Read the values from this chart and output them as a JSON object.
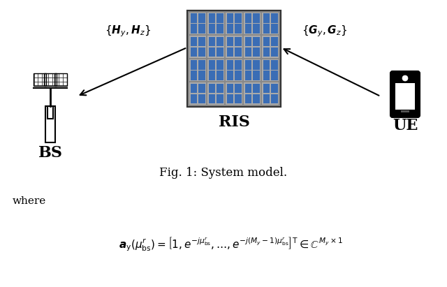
{
  "title": "Fig. 1: System model.",
  "ris_label": "RIS",
  "bs_label": "BS",
  "ue_label": "UE",
  "where_text": "where",
  "equation": "$\\boldsymbol{a}_{\\mathrm{y}}(\\mu_{\\mathrm{bs}}^{r}) = \\left[1, e^{-j\\mu_{\\mathrm{bs}}^{r}}, \\ldots, e^{-j(M_y-1)\\mu_{\\mathrm{bs}}^{r}}\\right]^{\\mathrm{T}} \\in \\mathbb{C}^{M_y \\times 1}$",
  "h_label": "$\\{\\boldsymbol{H}_y, \\boldsymbol{H}_z\\}$",
  "g_label": "$\\{\\boldsymbol{G}_y, \\boldsymbol{G}_z\\}$",
  "bg_color": "#ffffff",
  "ris_cell_color": "#3a6db5",
  "ris_frame_color": "#888888",
  "ris_inner_color": "#6699cc",
  "ris_border_color": "#555555"
}
